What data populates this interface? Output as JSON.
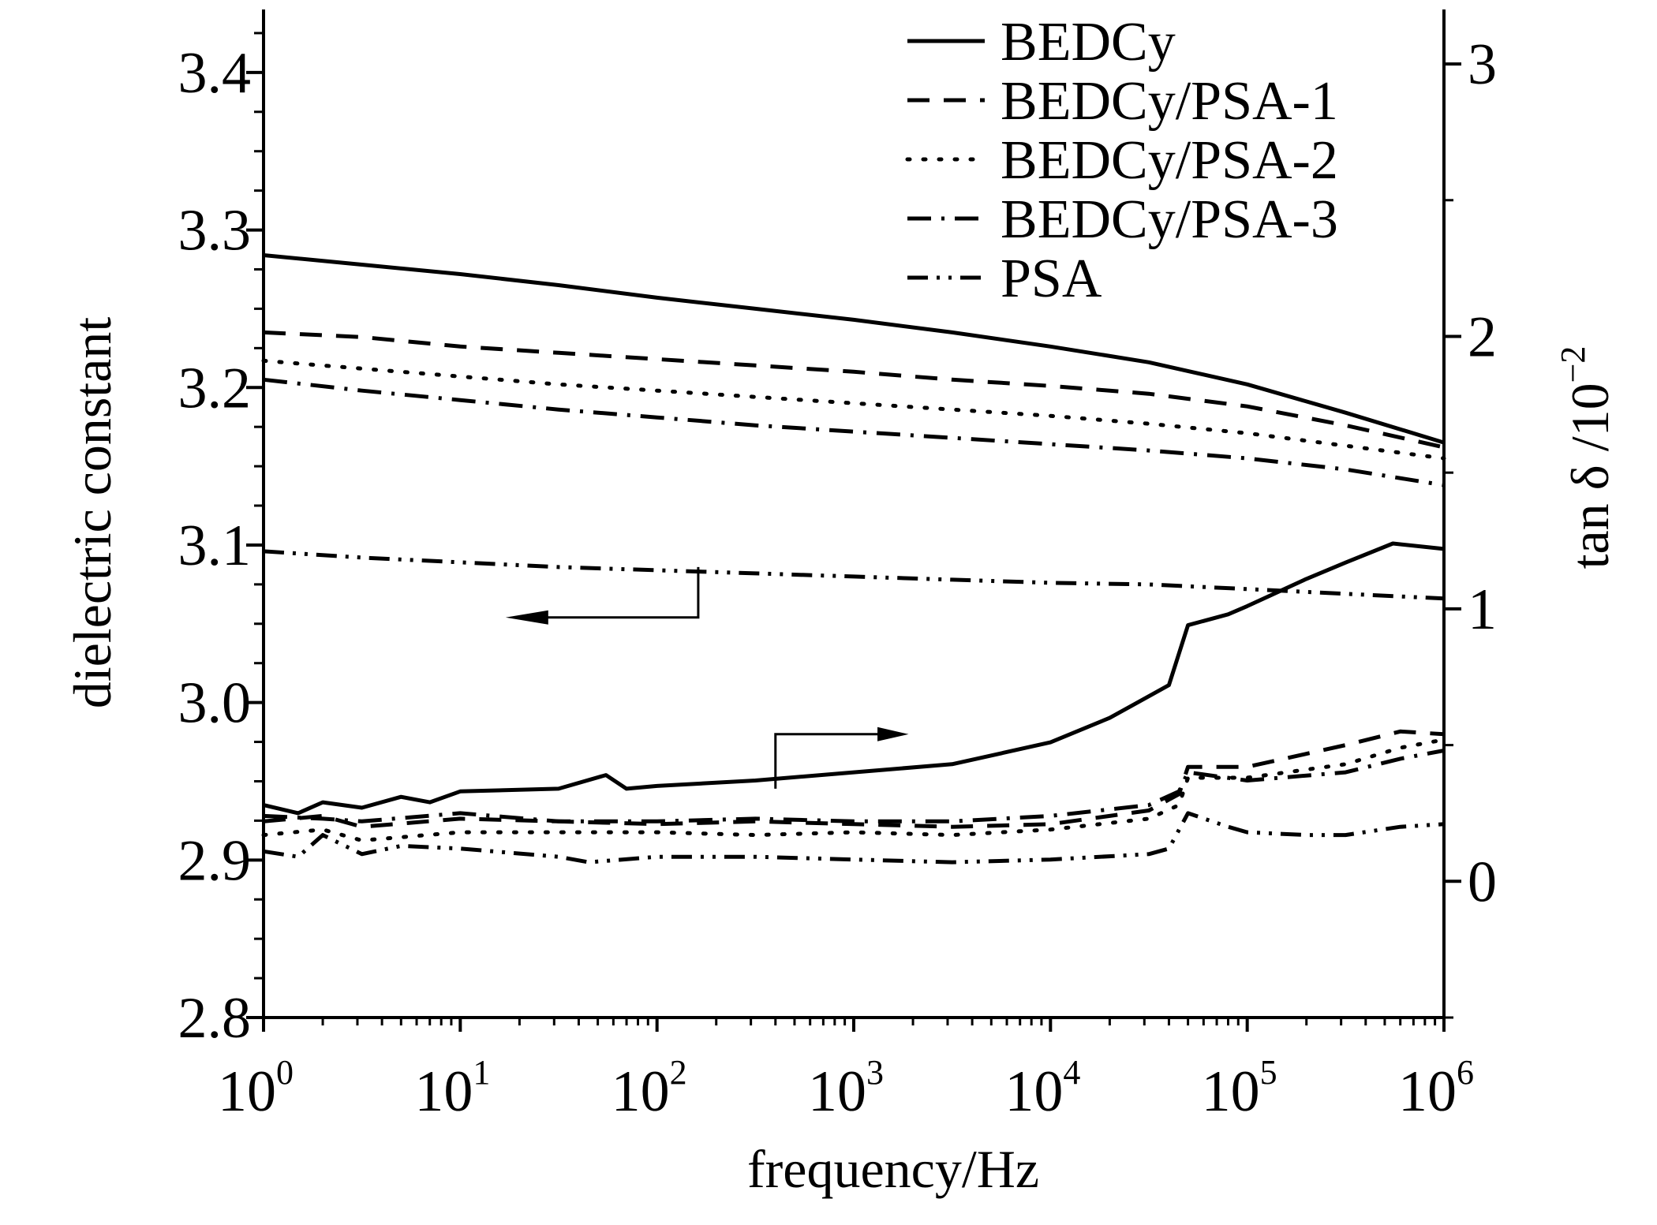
{
  "chart_data": {
    "type": "line",
    "title": "",
    "xlabel": "frequency/Hz",
    "ylabel_left": "dielectric constant",
    "ylabel_right_prefix": "tan δ /10",
    "ylabel_right_exp": "−2",
    "x_scale": "log",
    "xlim": [
      1,
      1000000
    ],
    "x_ticks": [
      {
        "base": "10",
        "exp": "0"
      },
      {
        "base": "10",
        "exp": "1"
      },
      {
        "base": "10",
        "exp": "2"
      },
      {
        "base": "10",
        "exp": "3"
      },
      {
        "base": "10",
        "exp": "4"
      },
      {
        "base": "10",
        "exp": "5"
      },
      {
        "base": "10",
        "exp": "6"
      }
    ],
    "ylim_left": [
      2.8,
      3.44
    ],
    "y_ticks_left": [
      "2.8",
      "2.9",
      "3.0",
      "3.1",
      "3.2",
      "3.3",
      "3.4"
    ],
    "ylim_right": [
      -0.5,
      3.2
    ],
    "y_ticks_right": [
      "0",
      "1",
      "2",
      "3"
    ],
    "grid": false,
    "legend_position": "top-right",
    "line_color": "#000000",
    "annotations": [
      {
        "type": "arrow",
        "points_to": "left axis"
      },
      {
        "type": "arrow",
        "points_to": "right axis"
      }
    ],
    "series": [
      {
        "name": "BEDCy",
        "style": "solid",
        "axis": "left",
        "x": [
          1,
          3.16,
          10,
          31.6,
          100,
          316,
          1000,
          3162,
          10000,
          31623,
          100000,
          316228,
          1000000
        ],
        "y": [
          3.284,
          3.278,
          3.272,
          3.265,
          3.257,
          3.25,
          3.243,
          3.235,
          3.226,
          3.216,
          3.202,
          3.184,
          3.165
        ]
      },
      {
        "name": "BEDCy/PSA-1",
        "style": "dashed",
        "axis": "left",
        "x": [
          1,
          3.16,
          10,
          31.6,
          100,
          316,
          1000,
          3162,
          10000,
          31623,
          100000,
          316228,
          1000000
        ],
        "y": [
          3.235,
          3.232,
          3.226,
          3.222,
          3.218,
          3.214,
          3.21,
          3.205,
          3.201,
          3.196,
          3.188,
          3.176,
          3.162
        ]
      },
      {
        "name": "BEDCy/PSA-2",
        "style": "dotted",
        "axis": "left",
        "x": [
          1,
          3.16,
          10,
          31.6,
          100,
          316,
          1000,
          3162,
          10000,
          31623,
          100000,
          316228,
          1000000
        ],
        "y": [
          3.217,
          3.212,
          3.207,
          3.202,
          3.198,
          3.194,
          3.19,
          3.186,
          3.182,
          3.177,
          3.171,
          3.163,
          3.155
        ]
      },
      {
        "name": "BEDCy/PSA-3",
        "style": "dashdot",
        "axis": "left",
        "x": [
          1,
          3.16,
          10,
          31.6,
          100,
          316,
          1000,
          3162,
          10000,
          31623,
          100000,
          316228,
          1000000
        ],
        "y": [
          3.205,
          3.198,
          3.192,
          3.186,
          3.181,
          3.176,
          3.172,
          3.168,
          3.164,
          3.16,
          3.155,
          3.148,
          3.138
        ]
      },
      {
        "name": "PSA",
        "style": "dashdotdot",
        "axis": "left",
        "x": [
          1,
          3.16,
          10,
          31.6,
          100,
          316,
          1000,
          3162,
          10000,
          31623,
          100000,
          316228,
          1000000
        ],
        "y": [
          3.096,
          3.092,
          3.089,
          3.086,
          3.084,
          3.082,
          3.08,
          3.078,
          3.076,
          3.075,
          3.072,
          3.069,
          3.066
        ]
      },
      {
        "name": "BEDCy",
        "style": "solid",
        "axis": "right",
        "x": [
          1,
          1.5,
          2,
          3.16,
          5,
          7,
          10,
          31.6,
          55,
          70,
          100,
          316,
          1000,
          3162,
          10000,
          20000,
          40000,
          50000,
          80000,
          100000,
          200000,
          316228,
          550000,
          1000000
        ],
        "y": [
          0.28,
          0.25,
          0.29,
          0.27,
          0.31,
          0.29,
          0.33,
          0.34,
          0.39,
          0.34,
          0.35,
          0.37,
          0.4,
          0.43,
          0.51,
          0.6,
          0.72,
          0.94,
          0.98,
          1.01,
          1.11,
          1.17,
          1.24,
          1.22
        ]
      },
      {
        "name": "BEDCy/PSA-1",
        "style": "dashed",
        "axis": "right",
        "x": [
          1,
          2,
          3.16,
          10,
          31.6,
          100,
          316,
          1000,
          3162,
          10000,
          31623,
          45000,
          50000,
          100000,
          316228,
          600000,
          1000000
        ],
        "y": [
          0.22,
          0.24,
          0.2,
          0.23,
          0.22,
          0.21,
          0.22,
          0.21,
          0.2,
          0.21,
          0.26,
          0.32,
          0.42,
          0.42,
          0.5,
          0.55,
          0.54
        ]
      },
      {
        "name": "BEDCy/PSA-2",
        "style": "dotted",
        "axis": "right",
        "x": [
          1,
          2,
          3.16,
          10,
          31.6,
          100,
          316,
          1000,
          3162,
          10000,
          31623,
          45000,
          50000,
          100000,
          316228,
          600000,
          1000000
        ],
        "y": [
          0.17,
          0.19,
          0.15,
          0.18,
          0.18,
          0.18,
          0.17,
          0.18,
          0.17,
          0.19,
          0.23,
          0.28,
          0.38,
          0.38,
          0.43,
          0.49,
          0.52
        ]
      },
      {
        "name": "BEDCy/PSA-3",
        "style": "dashdot",
        "axis": "right",
        "x": [
          1,
          2,
          3.16,
          10,
          31.6,
          100,
          316,
          1000,
          3162,
          10000,
          31623,
          45000,
          50000,
          100000,
          316228,
          600000,
          1000000
        ],
        "y": [
          0.24,
          0.23,
          0.22,
          0.25,
          0.22,
          0.22,
          0.23,
          0.22,
          0.22,
          0.24,
          0.28,
          0.33,
          0.4,
          0.37,
          0.4,
          0.45,
          0.48
        ]
      },
      {
        "name": "PSA",
        "style": "dashdotdot",
        "axis": "right",
        "x": [
          1,
          1.5,
          2,
          3.16,
          5,
          10,
          31.6,
          45,
          100,
          316,
          1000,
          3162,
          10000,
          31623,
          40000,
          50000,
          80000,
          100000,
          200000,
          316228,
          600000,
          1000000
        ],
        "y": [
          0.11,
          0.09,
          0.17,
          0.1,
          0.13,
          0.12,
          0.09,
          0.07,
          0.09,
          0.09,
          0.08,
          0.07,
          0.08,
          0.1,
          0.12,
          0.25,
          0.2,
          0.18,
          0.17,
          0.17,
          0.2,
          0.21
        ]
      }
    ]
  }
}
